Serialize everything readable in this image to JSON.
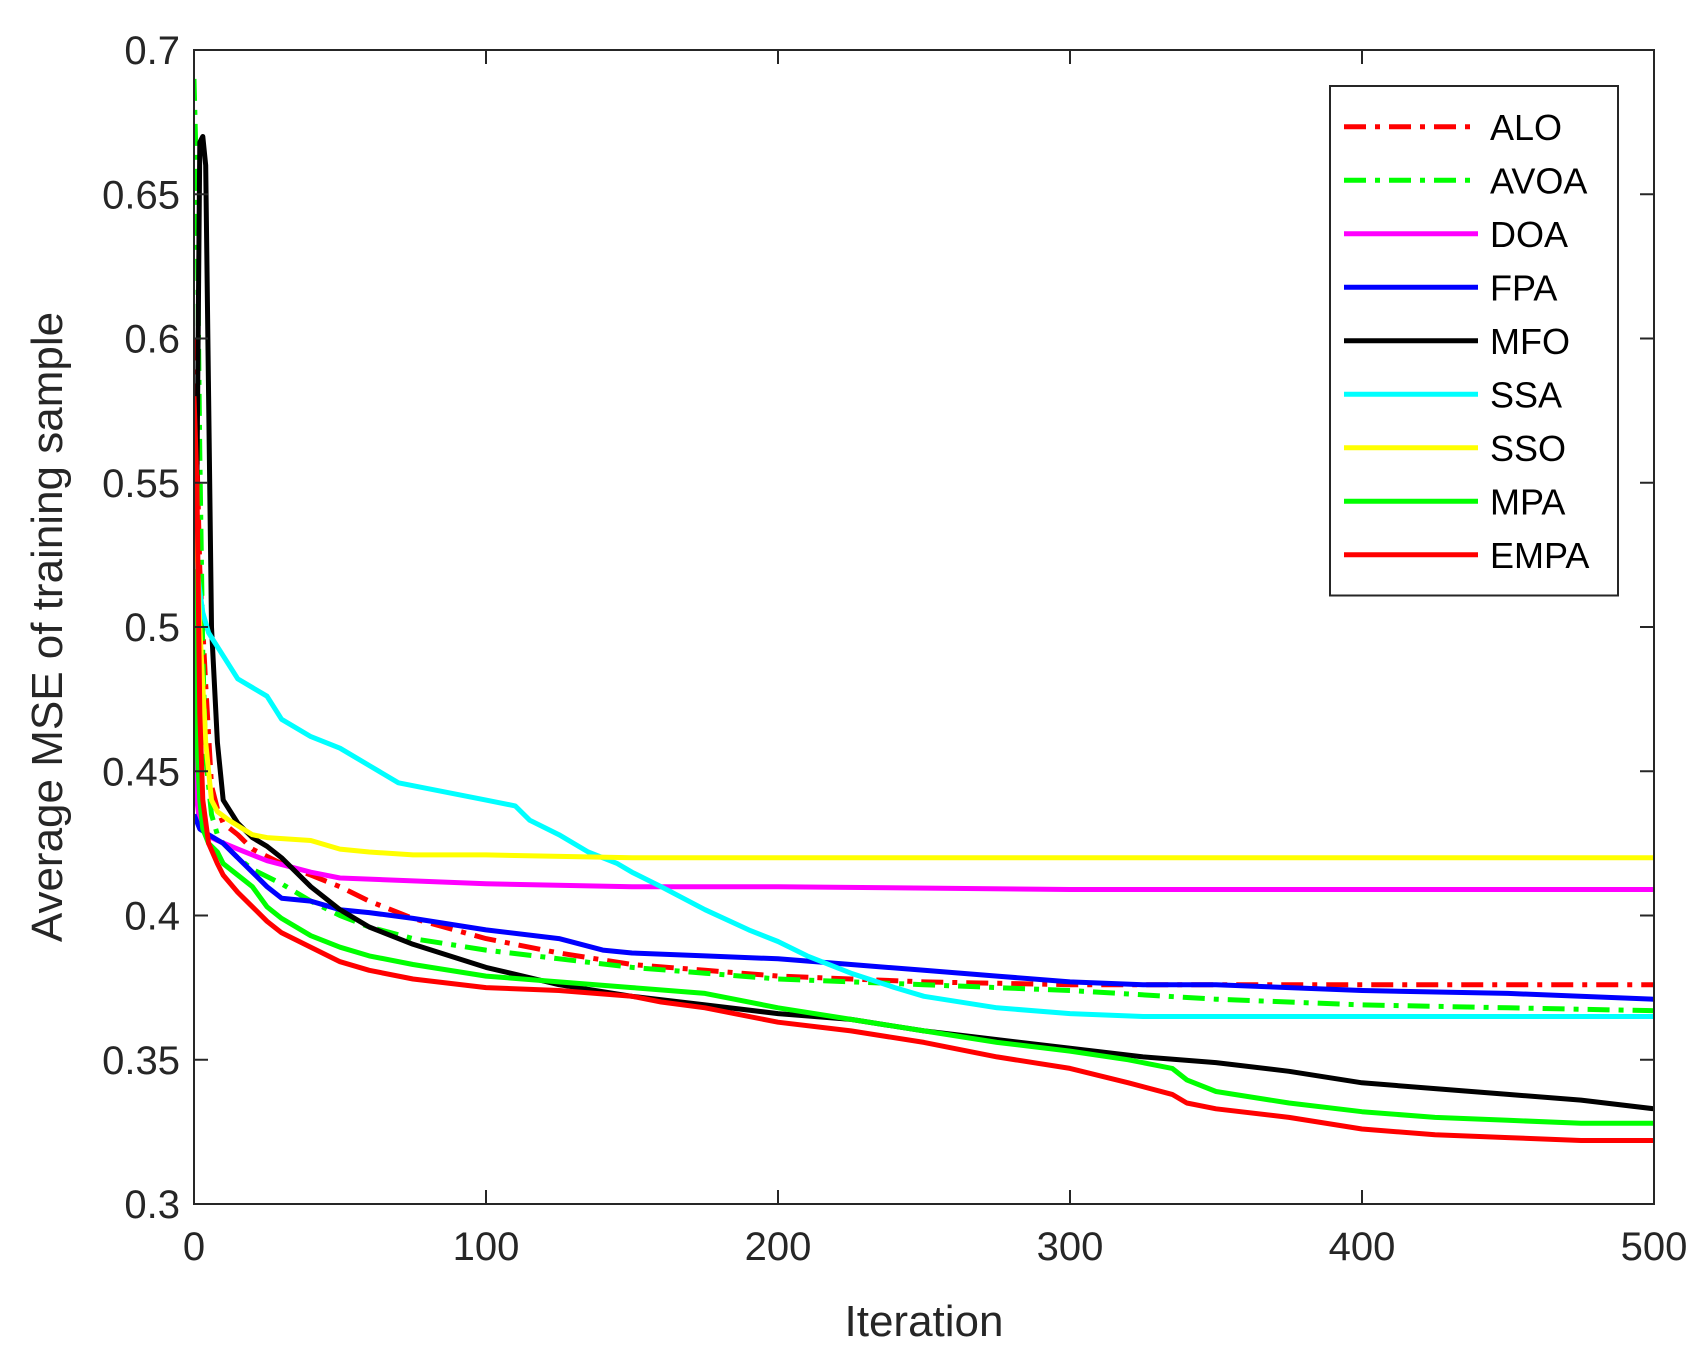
{
  "chart_data": {
    "type": "line",
    "title": "",
    "xlabel": "Iteration",
    "ylabel": "Average MSE of training sample",
    "xlim": [
      0,
      500
    ],
    "ylim": [
      0.3,
      0.7
    ],
    "xticks": [
      0,
      100,
      200,
      300,
      400,
      500
    ],
    "xtick_labels": [
      "0",
      "100",
      "200",
      "300",
      "400",
      "500"
    ],
    "yticks": [
      0.3,
      0.35,
      0.4,
      0.45,
      0.5,
      0.55,
      0.6,
      0.65,
      0.7
    ],
    "ytick_labels": [
      "0.3",
      "0.35",
      "0.4",
      "0.45",
      "0.5",
      "0.55",
      "0.6",
      "0.65",
      "0.7"
    ],
    "grid": false,
    "legend_position": "top-right",
    "series": [
      {
        "name": "ALO",
        "color": "#ff0000",
        "dash": "dashdot",
        "points": [
          [
            0,
            0.6
          ],
          [
            2,
            0.52
          ],
          [
            4,
            0.48
          ],
          [
            6,
            0.445
          ],
          [
            8,
            0.437
          ],
          [
            10,
            0.432
          ],
          [
            15,
            0.428
          ],
          [
            20,
            0.423
          ],
          [
            30,
            0.418
          ],
          [
            40,
            0.414
          ],
          [
            50,
            0.41
          ],
          [
            60,
            0.405
          ],
          [
            75,
            0.399
          ],
          [
            100,
            0.392
          ],
          [
            125,
            0.387
          ],
          [
            150,
            0.383
          ],
          [
            175,
            0.381
          ],
          [
            200,
            0.379
          ],
          [
            225,
            0.378
          ],
          [
            250,
            0.377
          ],
          [
            300,
            0.376
          ],
          [
            350,
            0.376
          ],
          [
            400,
            0.376
          ],
          [
            450,
            0.376
          ],
          [
            500,
            0.376
          ]
        ]
      },
      {
        "name": "AVOA",
        "color": "#00ff00",
        "dash": "dashdot",
        "points": [
          [
            0,
            0.69
          ],
          [
            1,
            0.65
          ],
          [
            2,
            0.56
          ],
          [
            3,
            0.49
          ],
          [
            4,
            0.455
          ],
          [
            6,
            0.435
          ],
          [
            8,
            0.428
          ],
          [
            10,
            0.425
          ],
          [
            15,
            0.42
          ],
          [
            20,
            0.416
          ],
          [
            30,
            0.411
          ],
          [
            40,
            0.405
          ],
          [
            50,
            0.4
          ],
          [
            60,
            0.396
          ],
          [
            75,
            0.392
          ],
          [
            100,
            0.388
          ],
          [
            125,
            0.385
          ],
          [
            150,
            0.382
          ],
          [
            175,
            0.38
          ],
          [
            200,
            0.378
          ],
          [
            250,
            0.376
          ],
          [
            300,
            0.374
          ],
          [
            350,
            0.371
          ],
          [
            400,
            0.369
          ],
          [
            450,
            0.368
          ],
          [
            500,
            0.367
          ]
        ]
      },
      {
        "name": "DOA",
        "color": "#ff00ff",
        "dash": "solid",
        "points": [
          [
            0,
            0.465
          ],
          [
            1,
            0.44
          ],
          [
            2,
            0.432
          ],
          [
            4,
            0.428
          ],
          [
            8,
            0.426
          ],
          [
            15,
            0.423
          ],
          [
            25,
            0.419
          ],
          [
            40,
            0.415
          ],
          [
            50,
            0.413
          ],
          [
            75,
            0.412
          ],
          [
            100,
            0.411
          ],
          [
            150,
            0.41
          ],
          [
            200,
            0.41
          ],
          [
            300,
            0.409
          ],
          [
            400,
            0.409
          ],
          [
            500,
            0.409
          ]
        ]
      },
      {
        "name": "FPA",
        "color": "#0000ff",
        "dash": "solid",
        "points": [
          [
            0,
            0.435
          ],
          [
            2,
            0.43
          ],
          [
            5,
            0.428
          ],
          [
            10,
            0.425
          ],
          [
            15,
            0.42
          ],
          [
            20,
            0.415
          ],
          [
            25,
            0.41
          ],
          [
            30,
            0.406
          ],
          [
            40,
            0.405
          ],
          [
            50,
            0.402
          ],
          [
            60,
            0.401
          ],
          [
            75,
            0.399
          ],
          [
            100,
            0.395
          ],
          [
            125,
            0.392
          ],
          [
            140,
            0.388
          ],
          [
            150,
            0.387
          ],
          [
            175,
            0.386
          ],
          [
            200,
            0.385
          ],
          [
            225,
            0.383
          ],
          [
            250,
            0.381
          ],
          [
            275,
            0.379
          ],
          [
            300,
            0.377
          ],
          [
            325,
            0.376
          ],
          [
            350,
            0.376
          ],
          [
            375,
            0.375
          ],
          [
            400,
            0.374
          ],
          [
            450,
            0.373
          ],
          [
            500,
            0.371
          ]
        ]
      },
      {
        "name": "MFO",
        "color": "#000000",
        "dash": "solid",
        "points": [
          [
            0,
            0.48
          ],
          [
            1,
            0.55
          ],
          [
            2,
            0.668
          ],
          [
            3,
            0.67
          ],
          [
            4,
            0.66
          ],
          [
            5,
            0.58
          ],
          [
            6,
            0.5
          ],
          [
            8,
            0.46
          ],
          [
            10,
            0.44
          ],
          [
            15,
            0.432
          ],
          [
            20,
            0.427
          ],
          [
            25,
            0.424
          ],
          [
            30,
            0.42
          ],
          [
            40,
            0.41
          ],
          [
            50,
            0.402
          ],
          [
            60,
            0.396
          ],
          [
            75,
            0.39
          ],
          [
            100,
            0.382
          ],
          [
            125,
            0.376
          ],
          [
            150,
            0.372
          ],
          [
            175,
            0.369
          ],
          [
            200,
            0.366
          ],
          [
            225,
            0.364
          ],
          [
            250,
            0.36
          ],
          [
            275,
            0.357
          ],
          [
            300,
            0.354
          ],
          [
            325,
            0.351
          ],
          [
            350,
            0.349
          ],
          [
            375,
            0.346
          ],
          [
            400,
            0.342
          ],
          [
            425,
            0.34
          ],
          [
            450,
            0.338
          ],
          [
            475,
            0.336
          ],
          [
            500,
            0.333
          ]
        ]
      },
      {
        "name": "SSA",
        "color": "#00ffff",
        "dash": "solid",
        "points": [
          [
            0,
            0.55
          ],
          [
            1,
            0.52
          ],
          [
            3,
            0.505
          ],
          [
            5,
            0.498
          ],
          [
            10,
            0.49
          ],
          [
            15,
            0.482
          ],
          [
            25,
            0.476
          ],
          [
            30,
            0.468
          ],
          [
            40,
            0.462
          ],
          [
            50,
            0.458
          ],
          [
            60,
            0.452
          ],
          [
            70,
            0.446
          ],
          [
            75,
            0.445
          ],
          [
            90,
            0.442
          ],
          [
            100,
            0.44
          ],
          [
            110,
            0.438
          ],
          [
            115,
            0.433
          ],
          [
            125,
            0.428
          ],
          [
            135,
            0.422
          ],
          [
            145,
            0.418
          ],
          [
            150,
            0.415
          ],
          [
            160,
            0.41
          ],
          [
            175,
            0.402
          ],
          [
            190,
            0.395
          ],
          [
            200,
            0.391
          ],
          [
            210,
            0.386
          ],
          [
            225,
            0.38
          ],
          [
            240,
            0.375
          ],
          [
            250,
            0.372
          ],
          [
            275,
            0.368
          ],
          [
            300,
            0.366
          ],
          [
            325,
            0.365
          ],
          [
            350,
            0.365
          ],
          [
            400,
            0.365
          ],
          [
            450,
            0.365
          ],
          [
            500,
            0.365
          ]
        ]
      },
      {
        "name": "SSO",
        "color": "#ffff00",
        "dash": "solid",
        "points": [
          [
            0,
            0.56
          ],
          [
            1,
            0.53
          ],
          [
            2,
            0.5
          ],
          [
            4,
            0.46
          ],
          [
            6,
            0.44
          ],
          [
            8,
            0.436
          ],
          [
            12,
            0.433
          ],
          [
            20,
            0.428
          ],
          [
            25,
            0.427
          ],
          [
            40,
            0.426
          ],
          [
            50,
            0.423
          ],
          [
            60,
            0.422
          ],
          [
            75,
            0.421
          ],
          [
            100,
            0.421
          ],
          [
            150,
            0.42
          ],
          [
            200,
            0.42
          ],
          [
            300,
            0.42
          ],
          [
            400,
            0.42
          ],
          [
            500,
            0.42
          ]
        ]
      },
      {
        "name": "MPA",
        "color": "#00ff00",
        "dash": "solid",
        "points": [
          [
            0,
            0.52
          ],
          [
            1,
            0.46
          ],
          [
            2,
            0.44
          ],
          [
            3,
            0.43
          ],
          [
            5,
            0.425
          ],
          [
            8,
            0.422
          ],
          [
            10,
            0.418
          ],
          [
            15,
            0.414
          ],
          [
            20,
            0.41
          ],
          [
            25,
            0.403
          ],
          [
            30,
            0.399
          ],
          [
            40,
            0.393
          ],
          [
            50,
            0.389
          ],
          [
            60,
            0.386
          ],
          [
            75,
            0.383
          ],
          [
            100,
            0.379
          ],
          [
            125,
            0.377
          ],
          [
            150,
            0.375
          ],
          [
            175,
            0.373
          ],
          [
            200,
            0.368
          ],
          [
            225,
            0.364
          ],
          [
            250,
            0.36
          ],
          [
            275,
            0.356
          ],
          [
            300,
            0.353
          ],
          [
            320,
            0.35
          ],
          [
            335,
            0.347
          ],
          [
            340,
            0.343
          ],
          [
            350,
            0.339
          ],
          [
            375,
            0.335
          ],
          [
            400,
            0.332
          ],
          [
            425,
            0.33
          ],
          [
            450,
            0.329
          ],
          [
            475,
            0.328
          ],
          [
            500,
            0.328
          ]
        ]
      },
      {
        "name": "EMPA",
        "color": "#ff0000",
        "dash": "solid",
        "points": [
          [
            0,
            0.58
          ],
          [
            1,
            0.55
          ],
          [
            2,
            0.47
          ],
          [
            3,
            0.44
          ],
          [
            5,
            0.425
          ],
          [
            8,
            0.418
          ],
          [
            10,
            0.414
          ],
          [
            15,
            0.408
          ],
          [
            20,
            0.403
          ],
          [
            25,
            0.398
          ],
          [
            30,
            0.394
          ],
          [
            40,
            0.389
          ],
          [
            50,
            0.384
          ],
          [
            60,
            0.381
          ],
          [
            75,
            0.378
          ],
          [
            100,
            0.375
          ],
          [
            125,
            0.374
          ],
          [
            150,
            0.372
          ],
          [
            160,
            0.37
          ],
          [
            175,
            0.368
          ],
          [
            200,
            0.363
          ],
          [
            225,
            0.36
          ],
          [
            250,
            0.356
          ],
          [
            275,
            0.351
          ],
          [
            300,
            0.347
          ],
          [
            320,
            0.342
          ],
          [
            335,
            0.338
          ],
          [
            340,
            0.335
          ],
          [
            350,
            0.333
          ],
          [
            375,
            0.33
          ],
          [
            400,
            0.326
          ],
          [
            425,
            0.324
          ],
          [
            450,
            0.323
          ],
          [
            475,
            0.322
          ],
          [
            500,
            0.322
          ]
        ]
      }
    ]
  }
}
